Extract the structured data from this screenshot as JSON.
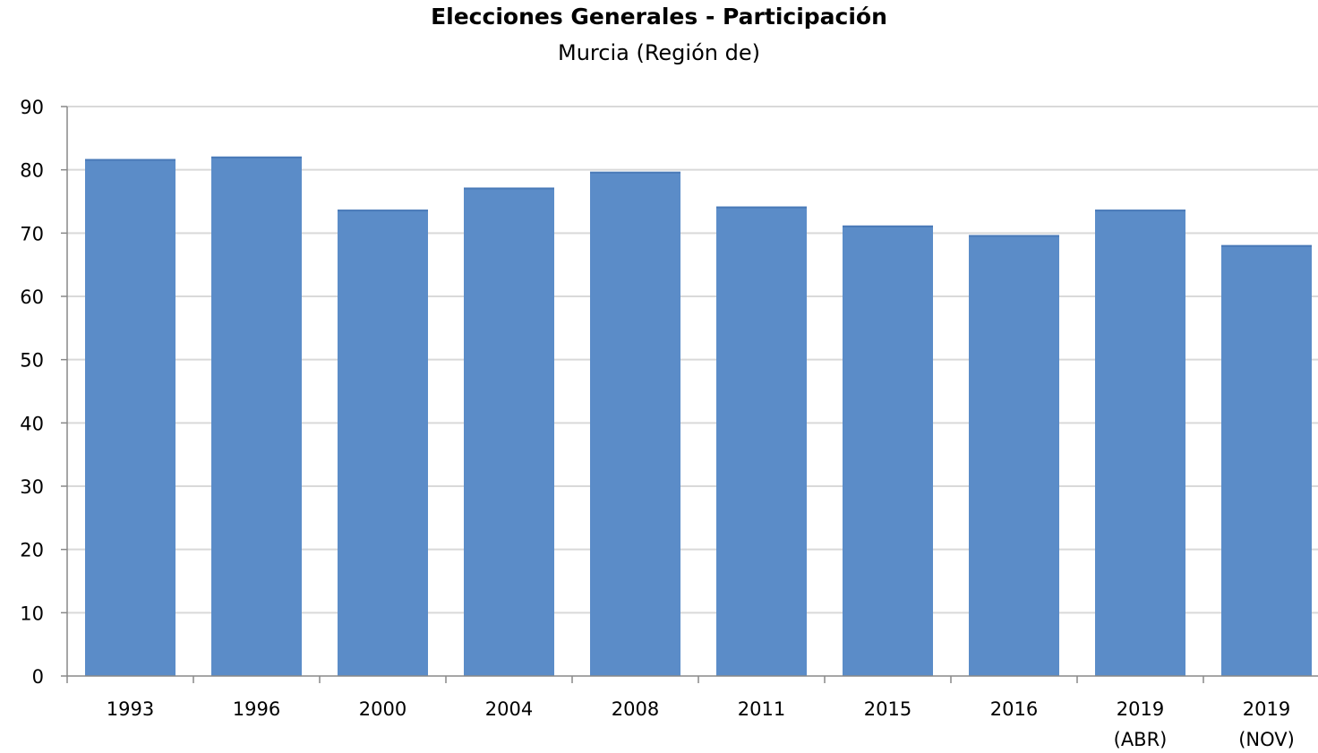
{
  "chart_data": {
    "type": "bar",
    "title": "Elecciones Generales - Participación",
    "subtitle": "Murcia (Región de)",
    "xlabel": "",
    "ylabel": "",
    "categories": [
      [
        "1993"
      ],
      [
        "1996"
      ],
      [
        "2000"
      ],
      [
        "2004"
      ],
      [
        "2008"
      ],
      [
        "2011"
      ],
      [
        "2015"
      ],
      [
        "2016"
      ],
      [
        "2019",
        "(ABR)"
      ],
      [
        "2019",
        "(NOV)"
      ]
    ],
    "values": [
      81.7,
      82.1,
      73.7,
      77.2,
      79.7,
      74.2,
      71.2,
      69.7,
      73.7,
      68.1
    ],
    "ylim": [
      0,
      90
    ],
    "yticks": [
      "0",
      "10",
      "20",
      "30",
      "40",
      "50",
      "60",
      "70",
      "80",
      "90"
    ],
    "grid": true,
    "legend": "none",
    "colors": {
      "bar": "#5b8cc8",
      "grid": "#d9d9d9",
      "axis": "#888888"
    }
  }
}
